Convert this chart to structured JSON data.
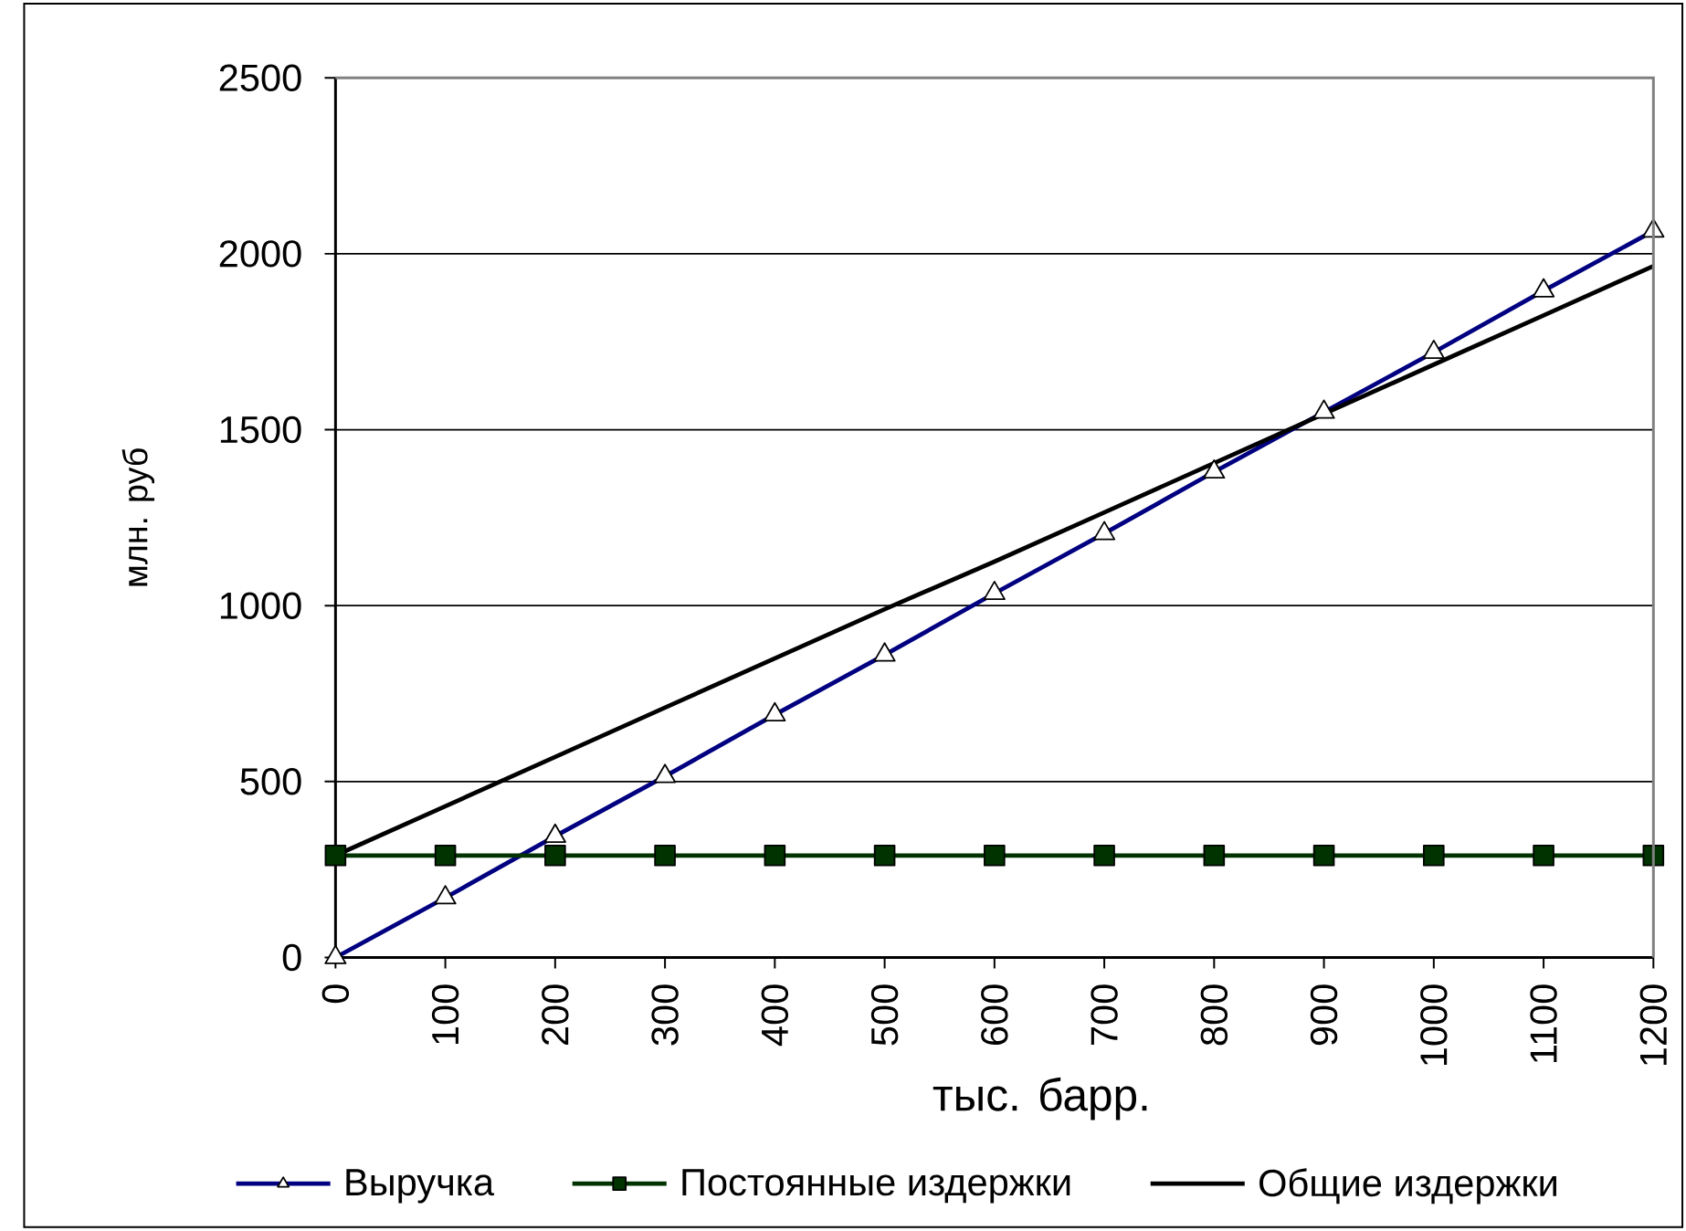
{
  "chart_data": {
    "type": "line",
    "xlabel": "тыс. барр.",
    "ylabel": "млн. руб",
    "x": [
      0,
      100,
      200,
      300,
      400,
      500,
      600,
      700,
      800,
      900,
      1000,
      1100,
      1200
    ],
    "xlim": [
      0,
      1200
    ],
    "xticks": [
      0,
      100,
      200,
      300,
      400,
      500,
      600,
      700,
      800,
      900,
      1000,
      1100,
      1200
    ],
    "ylim": [
      0,
      2500
    ],
    "yticks": [
      0,
      500,
      1000,
      1500,
      2000,
      2500
    ],
    "grid": "y",
    "legend": "bottom",
    "series": [
      {
        "name": "Выручка",
        "color": "#000080",
        "marker": "triangle",
        "values": [
          0,
          170,
          345,
          515,
          690,
          860,
          1035,
          1205,
          1380,
          1550,
          1720,
          1895,
          2065
        ]
      },
      {
        "name": "Постоянные издержки",
        "color": "#003300",
        "marker": "square",
        "values": [
          290,
          290,
          290,
          290,
          290,
          290,
          290,
          290,
          290,
          290,
          290,
          290,
          290
        ]
      },
      {
        "name": "Общие издержки",
        "color": "#000000",
        "marker": "none",
        "values": [
          290,
          430,
          570,
          710,
          850,
          990,
          1125,
          1265,
          1405,
          1545,
          1685,
          1825,
          1965
        ]
      }
    ]
  }
}
